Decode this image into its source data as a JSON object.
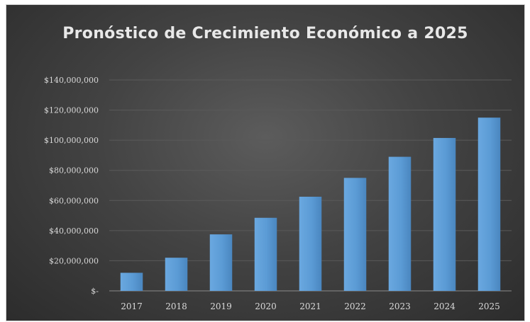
{
  "chart_data": {
    "type": "bar",
    "title": "Pronóstico de Crecimiento Económico a 2025",
    "categories": [
      "2017",
      "2018",
      "2019",
      "2020",
      "2021",
      "2022",
      "2023",
      "2024",
      "2025"
    ],
    "values": [
      12000000,
      22000000,
      37500000,
      48500000,
      62500000,
      75000000,
      89000000,
      101500000,
      115000000
    ],
    "ylim": [
      0,
      140000000
    ],
    "yticks": [
      0,
      20000000,
      40000000,
      60000000,
      80000000,
      100000000,
      120000000,
      140000000
    ],
    "ytick_labels": [
      "$-",
      "$20,000,000",
      "$40,000,000",
      "$60,000,000",
      "$80,000,000",
      "$100,000,000",
      "$120,000,000",
      "$140,000,000"
    ],
    "xlabel": "",
    "ylabel": "",
    "grid": true,
    "legend": "none",
    "colors": {
      "background": "#3f3f3f",
      "bar": "#5b9bd5",
      "text": "#d9d9d9",
      "gridline": "#5a5a5a"
    }
  }
}
